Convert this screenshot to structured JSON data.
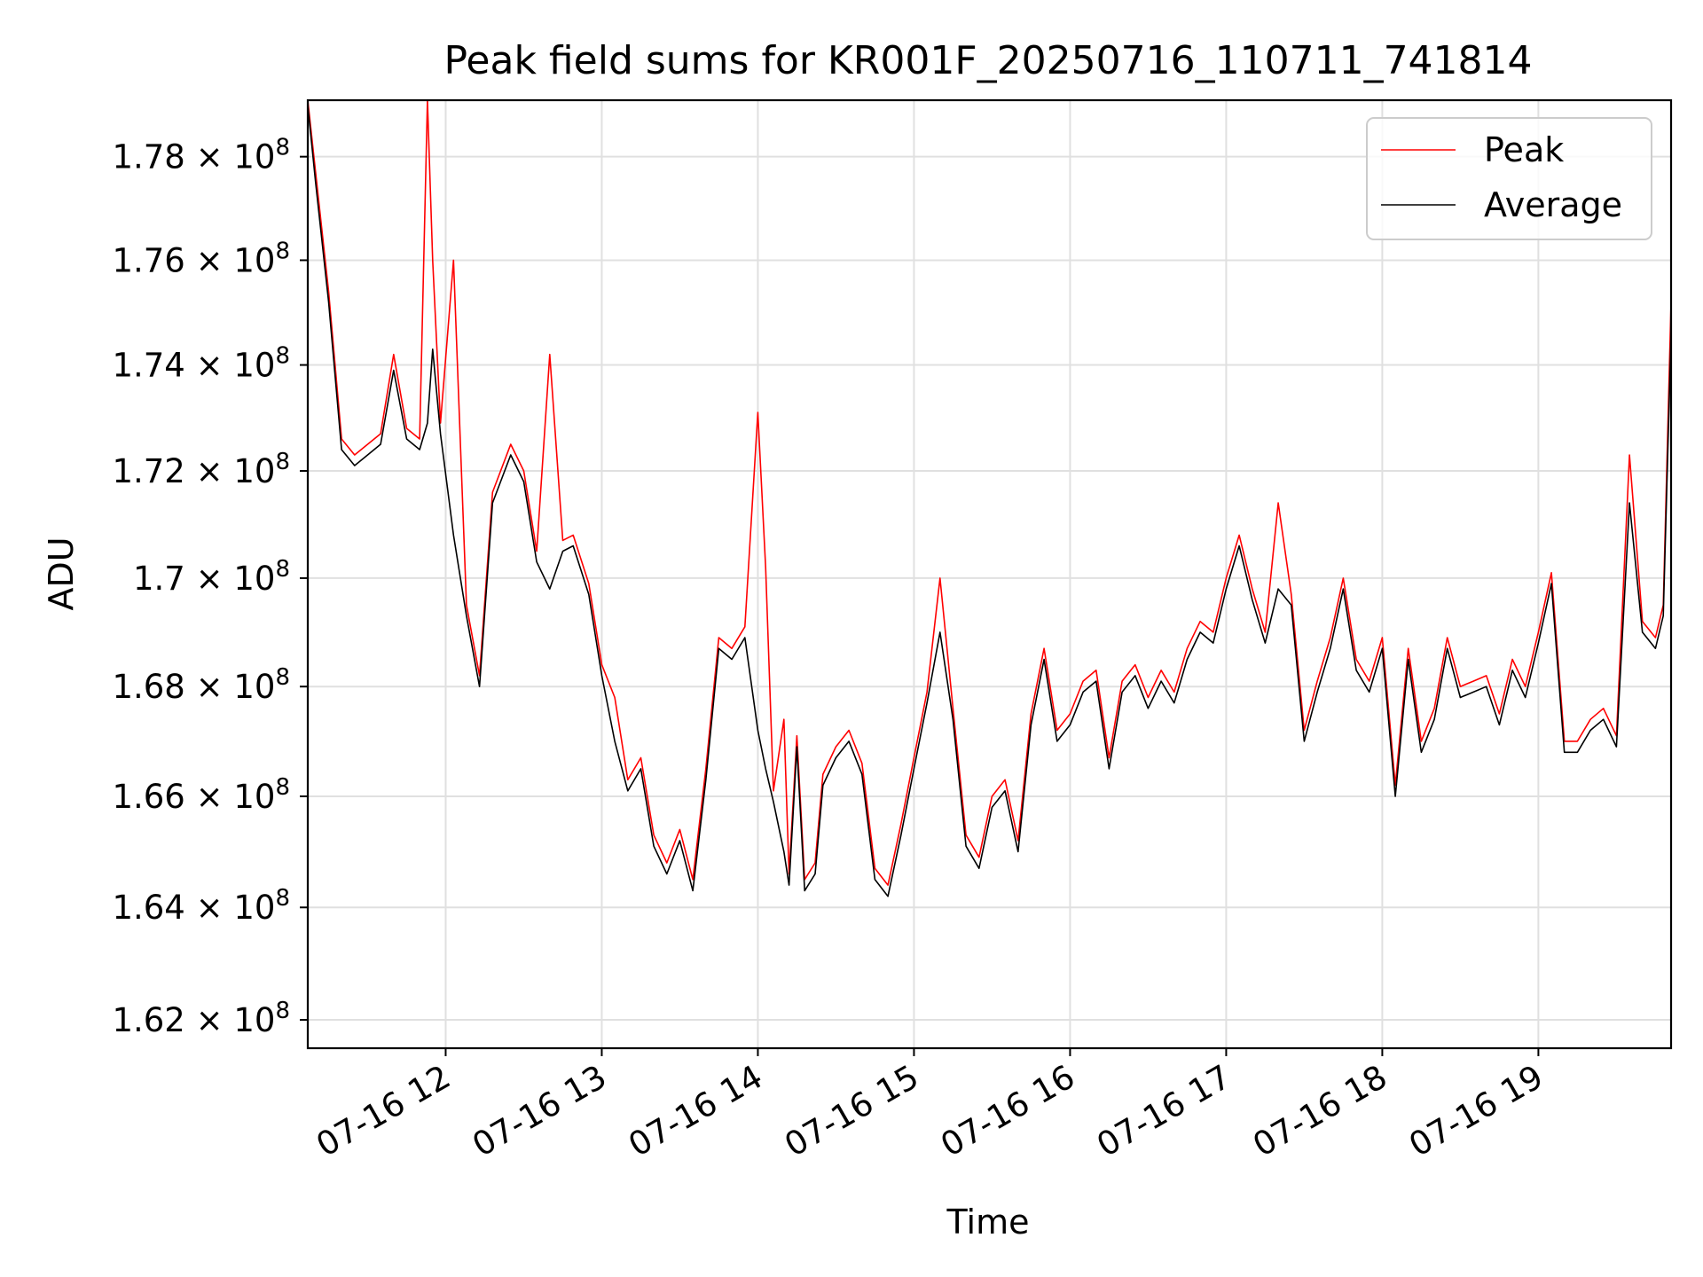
{
  "chart_data": {
    "type": "line",
    "title": "Peak field sums for KR001F_20250716_110711_741814",
    "xlabel": "Time",
    "ylabel": "ADU",
    "xlim": [
      "07-16 11:07",
      "07-16 19:51"
    ],
    "ylim": [
      161500000,
      179100000
    ],
    "y_scale": "log",
    "grid": true,
    "legend_position": "top-right",
    "x_ticks": [
      "07-16 12",
      "07-16 13",
      "07-16 14",
      "07-16 15",
      "07-16 16",
      "07-16 17",
      "07-16 18",
      "07-16 19"
    ],
    "x_tick_times": [
      "07-16 12:00",
      "07-16 13:00",
      "07-16 14:00",
      "07-16 15:00",
      "07-16 16:00",
      "07-16 17:00",
      "07-16 18:00",
      "07-16 19:00"
    ],
    "y_ticks": [
      {
        "value": 162000000,
        "mantissa": "1.62",
        "exp": "8"
      },
      {
        "value": 164000000,
        "mantissa": "1.64",
        "exp": "8"
      },
      {
        "value": 166000000,
        "mantissa": "1.66",
        "exp": "8"
      },
      {
        "value": 168000000,
        "mantissa": "1.68",
        "exp": "8"
      },
      {
        "value": 170000000,
        "mantissa": "1.7",
        "exp": "8"
      },
      {
        "value": 172000000,
        "mantissa": "1.72",
        "exp": "8"
      },
      {
        "value": 174000000,
        "mantissa": "1.74",
        "exp": "8"
      },
      {
        "value": 176000000,
        "mantissa": "1.76",
        "exp": "8"
      },
      {
        "value": 178000000,
        "mantissa": "1.78",
        "exp": "8"
      }
    ],
    "tick_base": "10",
    "x": [
      "07-16 11:07",
      "07-16 11:10",
      "07-16 11:15",
      "07-16 11:20",
      "07-16 11:25",
      "07-16 11:30",
      "07-16 11:35",
      "07-16 11:40",
      "07-16 11:45",
      "07-16 11:50",
      "07-16 11:53",
      "07-16 11:55",
      "07-16 11:58",
      "07-16 12:03",
      "07-16 12:08",
      "07-16 12:13",
      "07-16 12:18",
      "07-16 12:25",
      "07-16 12:30",
      "07-16 12:35",
      "07-16 12:40",
      "07-16 12:45",
      "07-16 12:49",
      "07-16 12:55",
      "07-16 13:00",
      "07-16 13:05",
      "07-16 13:10",
      "07-16 13:15",
      "07-16 13:20",
      "07-16 13:25",
      "07-16 13:30",
      "07-16 13:35",
      "07-16 13:40",
      "07-16 13:45",
      "07-16 13:50",
      "07-16 13:55",
      "07-16 14:00",
      "07-16 14:03",
      "07-16 14:06",
      "07-16 14:10",
      "07-16 14:12",
      "07-16 14:15",
      "07-16 14:18",
      "07-16 14:22",
      "07-16 14:25",
      "07-16 14:30",
      "07-16 14:35",
      "07-16 14:40",
      "07-16 14:45",
      "07-16 14:50",
      "07-16 14:55",
      "07-16 15:00",
      "07-16 15:05",
      "07-16 15:10",
      "07-16 15:15",
      "07-16 15:20",
      "07-16 15:25",
      "07-16 15:30",
      "07-16 15:35",
      "07-16 15:40",
      "07-16 15:45",
      "07-16 15:50",
      "07-16 15:55",
      "07-16 16:00",
      "07-16 16:05",
      "07-16 16:10",
      "07-16 16:15",
      "07-16 16:20",
      "07-16 16:25",
      "07-16 16:30",
      "07-16 16:35",
      "07-16 16:40",
      "07-16 16:45",
      "07-16 16:50",
      "07-16 16:55",
      "07-16 17:00",
      "07-16 17:05",
      "07-16 17:10",
      "07-16 17:15",
      "07-16 17:20",
      "07-16 17:25",
      "07-16 17:30",
      "07-16 17:35",
      "07-16 17:40",
      "07-16 17:45",
      "07-16 17:50",
      "07-16 17:55",
      "07-16 18:00",
      "07-16 18:05",
      "07-16 18:10",
      "07-16 18:15",
      "07-16 18:20",
      "07-16 18:25",
      "07-16 18:30",
      "07-16 18:35",
      "07-16 18:40",
      "07-16 18:45",
      "07-16 18:50",
      "07-16 18:55",
      "07-16 19:00",
      "07-16 19:05",
      "07-16 19:10",
      "07-16 19:15",
      "07-16 19:20",
      "07-16 19:25",
      "07-16 19:30",
      "07-16 19:35",
      "07-16 19:40",
      "07-16 19:45",
      "07-16 19:48",
      "07-16 19:51"
    ],
    "series": [
      {
        "name": "Average",
        "color": "#000000",
        "values": [
          179000000,
          177500000,
          175200000,
          172400000,
          172100000,
          172300000,
          172500000,
          173900000,
          172600000,
          172400000,
          172900000,
          174300000,
          172700000,
          170800000,
          169300000,
          168000000,
          171400000,
          172300000,
          171800000,
          170300000,
          169800000,
          170500000,
          170600000,
          169700000,
          168200000,
          167000000,
          166100000,
          166500000,
          165100000,
          164600000,
          165200000,
          164300000,
          166300000,
          168700000,
          168500000,
          168900000,
          167200000,
          166500000,
          165900000,
          165000000,
          164400000,
          166900000,
          164300000,
          164600000,
          166200000,
          166700000,
          167000000,
          166400000,
          164500000,
          164200000,
          165300000,
          166500000,
          167700000,
          169000000,
          167400000,
          165100000,
          164700000,
          165800000,
          166100000,
          165000000,
          167300000,
          168500000,
          167000000,
          167300000,
          167900000,
          168100000,
          166500000,
          167900000,
          168200000,
          167600000,
          168100000,
          167700000,
          168500000,
          169000000,
          168800000,
          169800000,
          170600000,
          169600000,
          168800000,
          169800000,
          169500000,
          167000000,
          167900000,
          168700000,
          169800000,
          168300000,
          167900000,
          168700000,
          166000000,
          168500000,
          166800000,
          167400000,
          168700000,
          167800000,
          167900000,
          168000000,
          167300000,
          168300000,
          167800000,
          168800000,
          169900000,
          166800000,
          166800000,
          167200000,
          167400000,
          166900000,
          171400000,
          169000000,
          168700000,
          169300000,
          174600000
        ]
      },
      {
        "name": "Peak",
        "color": "#ff0000",
        "values": [
          179100000,
          177700000,
          175400000,
          172600000,
          172300000,
          172500000,
          172700000,
          174200000,
          172800000,
          172600000,
          179100000,
          176000000,
          172900000,
          176000000,
          169500000,
          168200000,
          171600000,
          172500000,
          172000000,
          170500000,
          174200000,
          170700000,
          170800000,
          169900000,
          168400000,
          167800000,
          166300000,
          166700000,
          165300000,
          164800000,
          165400000,
          164500000,
          166500000,
          168900000,
          168700000,
          169100000,
          173100000,
          170200000,
          166100000,
          167400000,
          164600000,
          167100000,
          164500000,
          164800000,
          166400000,
          166900000,
          167200000,
          166600000,
          164700000,
          164400000,
          165500000,
          166700000,
          167900000,
          170000000,
          167600000,
          165300000,
          164900000,
          166000000,
          166300000,
          165200000,
          167500000,
          168700000,
          167200000,
          167500000,
          168100000,
          168300000,
          166700000,
          168100000,
          168400000,
          167800000,
          168300000,
          167900000,
          168700000,
          169200000,
          169000000,
          170000000,
          170800000,
          169800000,
          169000000,
          171400000,
          169700000,
          167200000,
          168100000,
          168900000,
          170000000,
          168500000,
          168100000,
          168900000,
          166200000,
          168700000,
          167000000,
          167600000,
          168900000,
          168000000,
          168100000,
          168200000,
          167500000,
          168500000,
          168000000,
          169000000,
          170100000,
          167000000,
          167000000,
          167400000,
          167600000,
          167100000,
          172300000,
          169200000,
          168900000,
          169500000,
          175200000
        ]
      }
    ]
  }
}
